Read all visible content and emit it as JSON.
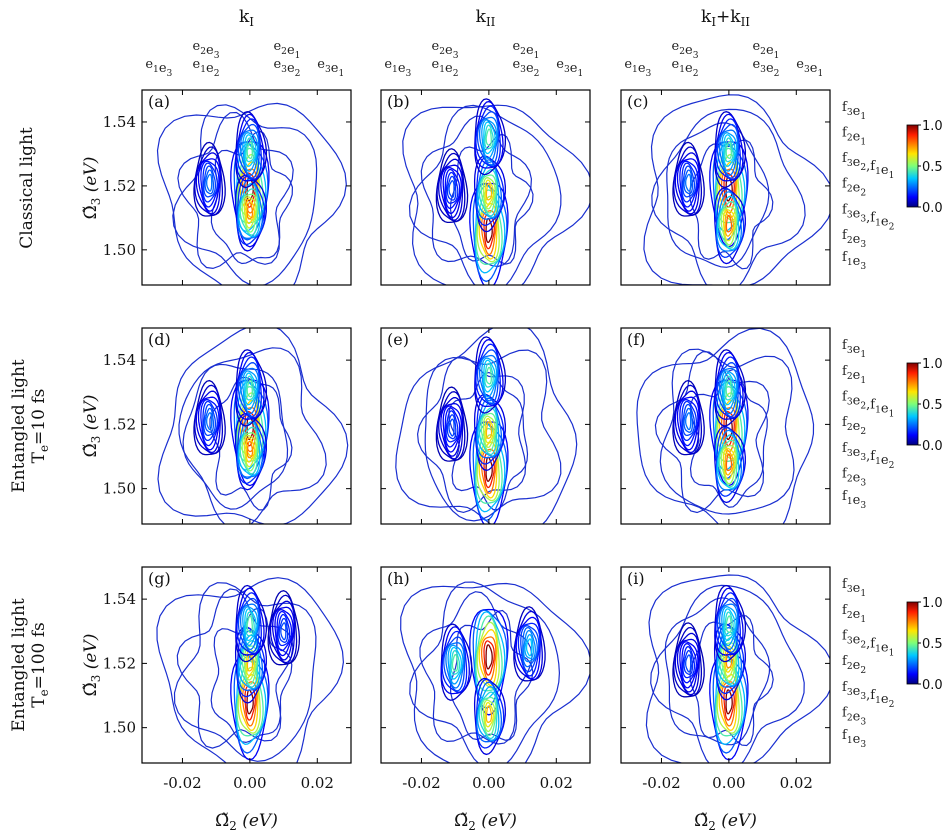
{
  "column_titles": [
    {
      "base": "k",
      "sub": "I"
    },
    {
      "base": "k",
      "sub": "II"
    },
    {
      "base": "k",
      "sub": "I",
      "mid": "+k",
      "sub2": "II"
    }
  ],
  "row_labels": [
    {
      "line1": "Classical light",
      "line2_base": "",
      "line2_sub": "",
      "line2_rest": ""
    },
    {
      "line1": "Entangled light",
      "line2_base": "T",
      "line2_sub": "e",
      "line2_rest": "=10 fs"
    },
    {
      "line1": "Entangled light",
      "line2_base": "T",
      "line2_sub": "e",
      "line2_rest": "=100 fs"
    }
  ],
  "panel_labels": [
    "(a)",
    "(b)",
    "(c)",
    "(d)",
    "(e)",
    "(f)",
    "(g)",
    "(h)",
    "(i)"
  ],
  "top_transitions": [
    {
      "l1": [
        [
          "e",
          "1"
        ],
        [
          "e",
          "3"
        ]
      ],
      "l2": null
    },
    {
      "l1": [
        [
          "e",
          "2"
        ],
        [
          "e",
          "3"
        ]
      ],
      "l2": [
        [
          "e",
          "1"
        ],
        [
          "e",
          "2"
        ]
      ]
    },
    {
      "l1": [
        [
          "e",
          "2"
        ],
        [
          "e",
          "1"
        ]
      ],
      "l2": [
        [
          "e",
          "3"
        ],
        [
          "e",
          "2"
        ]
      ]
    },
    {
      "l1": [
        [
          "e",
          "3"
        ],
        [
          "e",
          "1"
        ]
      ],
      "l2": null
    }
  ],
  "right_transitions": [
    [
      [
        "f",
        "3"
      ],
      [
        "e",
        "1"
      ]
    ],
    [
      [
        "f",
        "2"
      ],
      [
        "e",
        "1"
      ]
    ],
    [
      [
        "f",
        "3"
      ],
      [
        "e",
        "2"
      ],
      [
        "",
        ","
      ],
      [
        "f",
        "1"
      ],
      [
        "e",
        "1"
      ]
    ],
    [
      [
        "f",
        "2"
      ],
      [
        "e",
        "2"
      ]
    ],
    [
      [
        "f",
        "3"
      ],
      [
        "e",
        "3"
      ],
      [
        "",
        ","
      ],
      [
        "f",
        "1"
      ],
      [
        "e",
        "2"
      ]
    ],
    [
      [
        "f",
        "2"
      ],
      [
        "e",
        "3"
      ]
    ],
    [
      [
        "f",
        "1"
      ],
      [
        "e",
        "3"
      ]
    ]
  ],
  "axes": {
    "xlabel": {
      "sym": "Ω",
      "sub": "2",
      "unit": "(eV)"
    },
    "ylabel": {
      "sym": "Ω",
      "sub": "3",
      "unit": "(eV)"
    }
  },
  "colorbar": {
    "ticks": [
      "1.0",
      "0.5",
      "0.0"
    ],
    "colormap": "jet"
  },
  "chart_data": {
    "type": "heatmap",
    "title": "",
    "xlabel": "Ω̃2 (eV)",
    "ylabel": "Ω̃3 (eV)",
    "xlim": [
      -0.032,
      0.03
    ],
    "ylim": [
      1.489,
      1.55
    ],
    "x_ticks": [
      -0.02,
      0.0,
      0.02
    ],
    "x_tick_labels": [
      "-0.02",
      "0.00",
      "0.02"
    ],
    "y_ticks": [
      1.5,
      1.52,
      1.54
    ],
    "y_tick_labels": [
      "1.50",
      "1.52",
      "1.54"
    ],
    "colorbar_range": [
      0.0,
      1.0
    ],
    "colorbar_ticks": [
      0.0,
      0.5,
      1.0
    ],
    "panels": [
      {
        "label": "(a)",
        "row": "Classical light",
        "column": "kI",
        "peaks": [
          {
            "x": 0.0,
            "y": 1.519,
            "value": 1.0
          },
          {
            "x": 0.0,
            "y": 1.512,
            "value": 0.75
          },
          {
            "x": 0.0,
            "y": 1.531,
            "value": 0.45
          },
          {
            "x": -0.012,
            "y": 1.521,
            "value": 0.25
          }
        ]
      },
      {
        "label": "(b)",
        "row": "Classical light",
        "column": "kII",
        "peaks": [
          {
            "x": 0.0,
            "y": 1.506,
            "value": 1.0
          },
          {
            "x": 0.0,
            "y": 1.518,
            "value": 0.7
          },
          {
            "x": 0.0,
            "y": 1.535,
            "value": 0.45
          },
          {
            "x": -0.011,
            "y": 1.519,
            "value": 0.2
          }
        ]
      },
      {
        "label": "(c)",
        "row": "Classical light",
        "column": "kI+kII",
        "peaks": [
          {
            "x": 0.0,
            "y": 1.519,
            "value": 1.0
          },
          {
            "x": 0.0,
            "y": 1.508,
            "value": 0.8
          },
          {
            "x": 0.0,
            "y": 1.531,
            "value": 0.45
          },
          {
            "x": -0.012,
            "y": 1.521,
            "value": 0.25
          }
        ]
      },
      {
        "label": "(d)",
        "row": "Entangled light Te=10 fs",
        "column": "kI",
        "peaks": [
          {
            "x": 0.0,
            "y": 1.519,
            "value": 1.0
          },
          {
            "x": 0.0,
            "y": 1.512,
            "value": 0.75
          },
          {
            "x": 0.0,
            "y": 1.531,
            "value": 0.45
          },
          {
            "x": -0.012,
            "y": 1.521,
            "value": 0.25
          }
        ]
      },
      {
        "label": "(e)",
        "row": "Entangled light Te=10 fs",
        "column": "kII",
        "peaks": [
          {
            "x": 0.0,
            "y": 1.506,
            "value": 1.0
          },
          {
            "x": 0.0,
            "y": 1.518,
            "value": 0.7
          },
          {
            "x": 0.0,
            "y": 1.535,
            "value": 0.45
          },
          {
            "x": -0.011,
            "y": 1.519,
            "value": 0.2
          }
        ]
      },
      {
        "label": "(f)",
        "row": "Entangled light Te=10 fs",
        "column": "kI+kII",
        "peaks": [
          {
            "x": 0.0,
            "y": 1.519,
            "value": 1.0
          },
          {
            "x": 0.0,
            "y": 1.508,
            "value": 0.8
          },
          {
            "x": 0.0,
            "y": 1.531,
            "value": 0.45
          },
          {
            "x": -0.012,
            "y": 1.521,
            "value": 0.25
          }
        ]
      },
      {
        "label": "(g)",
        "row": "Entangled light Te=100 fs",
        "column": "kI",
        "peaks": [
          {
            "x": 0.0,
            "y": 1.508,
            "value": 1.0
          },
          {
            "x": 0.0,
            "y": 1.52,
            "value": 0.7
          },
          {
            "x": 0.0,
            "y": 1.532,
            "value": 0.45
          },
          {
            "x": 0.01,
            "y": 1.53,
            "value": 0.2
          }
        ]
      },
      {
        "label": "(h)",
        "row": "Entangled light Te=100 fs",
        "column": "kII",
        "peaks": [
          {
            "x": 0.0,
            "y": 1.522,
            "value": 1.0
          },
          {
            "x": 0.0,
            "y": 1.504,
            "value": 0.7
          },
          {
            "x": -0.01,
            "y": 1.52,
            "value": 0.45
          },
          {
            "x": 0.012,
            "y": 1.525,
            "value": 0.35
          }
        ]
      },
      {
        "label": "(i)",
        "row": "Entangled light Te=100 fs",
        "column": "kI+kII",
        "peaks": [
          {
            "x": 0.0,
            "y": 1.508,
            "value": 1.0
          },
          {
            "x": 0.0,
            "y": 1.521,
            "value": 0.75
          },
          {
            "x": 0.0,
            "y": 1.532,
            "value": 0.45
          },
          {
            "x": -0.012,
            "y": 1.52,
            "value": 0.2
          }
        ]
      }
    ]
  }
}
